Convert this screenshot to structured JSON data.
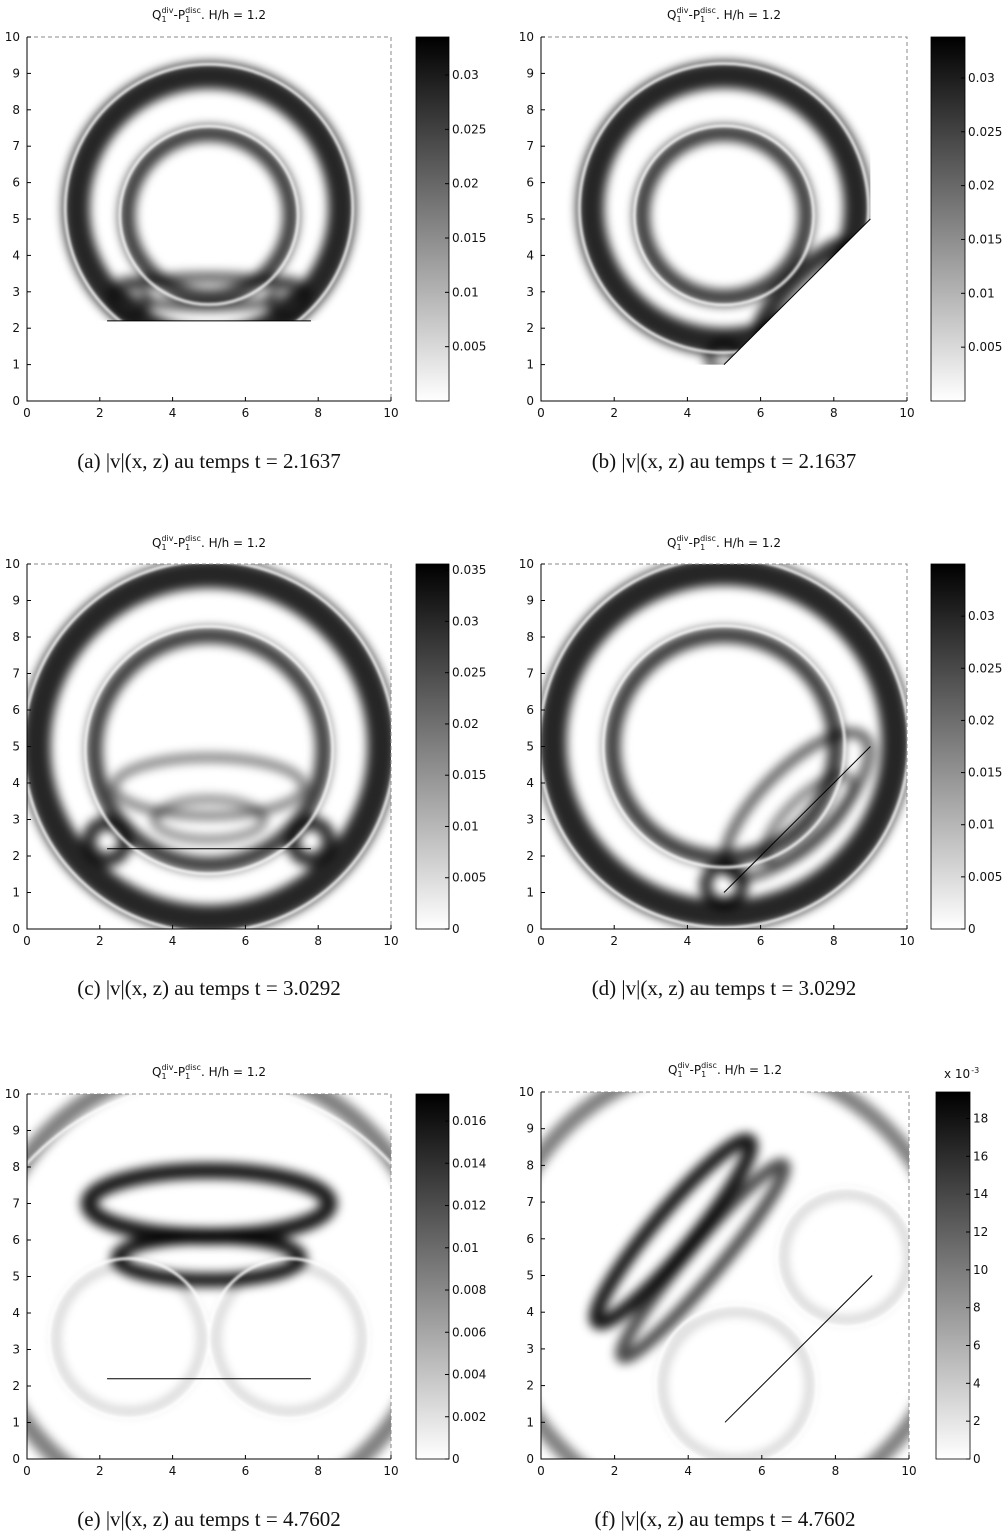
{
  "panels": [
    {
      "title": {
        "q": "Q",
        "q_sub": "1",
        "q_sup": "div",
        "p": "-P",
        "p_sub": "1",
        "p_sup": "disc",
        "rest": ". H/h = 1.2"
      },
      "xlim": [
        0,
        10
      ],
      "ylim": [
        0,
        10
      ],
      "xticks": [
        0,
        2,
        4,
        6,
        8,
        10
      ],
      "yticks": [
        0,
        1,
        2,
        3,
        4,
        5,
        6,
        7,
        8,
        9,
        10
      ],
      "colorbar": {
        "clim": [
          0,
          0.0335
        ],
        "ticks": [
          0.005,
          0.01,
          0.015,
          0.02,
          0.025,
          0.03
        ]
      },
      "caption": "(a) |v|(x, z) au temps t = 2.1637"
    },
    {
      "title": {
        "q": "Q",
        "q_sub": "1",
        "q_sup": "div",
        "p": "-P",
        "p_sub": "1",
        "p_sup": "disc",
        "rest": ". H/h = 1.2"
      },
      "xlim": [
        0,
        10
      ],
      "ylim": [
        0,
        10
      ],
      "xticks": [
        0,
        2,
        4,
        6,
        8,
        10
      ],
      "yticks": [
        0,
        1,
        2,
        3,
        4,
        5,
        6,
        7,
        8,
        9,
        10
      ],
      "colorbar": {
        "clim": [
          0,
          0.0338
        ],
        "ticks": [
          0.005,
          0.01,
          0.015,
          0.02,
          0.025,
          0.03
        ]
      },
      "caption": "(b) |v|(x, z) au temps t = 2.1637"
    },
    {
      "title": {
        "q": "Q",
        "q_sub": "1",
        "q_sup": "div",
        "p": "-P",
        "p_sub": "1",
        "p_sup": "disc",
        "rest": ". H/h = 1.2"
      },
      "xlim": [
        0,
        10
      ],
      "ylim": [
        0,
        10
      ],
      "xticks": [
        0,
        2,
        4,
        6,
        8,
        10
      ],
      "yticks": [
        0,
        1,
        2,
        3,
        4,
        5,
        6,
        7,
        8,
        9,
        10
      ],
      "colorbar": {
        "clim": [
          0,
          0.0356
        ],
        "ticks": [
          0,
          0.005,
          0.01,
          0.015,
          0.02,
          0.025,
          0.03,
          0.035
        ]
      },
      "caption": "(c) |v|(x, z) au temps t = 3.0292"
    },
    {
      "title": {
        "q": "Q",
        "q_sub": "1",
        "q_sup": "div",
        "p": "-P",
        "p_sub": "1",
        "p_sup": "disc",
        "rest": ". H/h = 1.2"
      },
      "xlim": [
        0,
        10
      ],
      "ylim": [
        0,
        10
      ],
      "xticks": [
        0,
        2,
        4,
        6,
        8,
        10
      ],
      "yticks": [
        0,
        1,
        2,
        3,
        4,
        5,
        6,
        7,
        8,
        9,
        10
      ],
      "colorbar": {
        "clim": [
          0,
          0.035
        ],
        "ticks": [
          0,
          0.005,
          0.01,
          0.015,
          0.02,
          0.025,
          0.03
        ]
      },
      "caption": "(d) |v|(x, z) au temps t = 3.0292"
    },
    {
      "title": {
        "q": "Q",
        "q_sub": "1",
        "q_sup": "div",
        "p": "-P",
        "p_sub": "1",
        "p_sup": "disc",
        "rest": ". H/h = 1.2"
      },
      "xlim": [
        0,
        10
      ],
      "ylim": [
        0,
        10
      ],
      "xticks": [
        0,
        2,
        4,
        6,
        8,
        10
      ],
      "yticks": [
        0,
        1,
        2,
        3,
        4,
        5,
        6,
        7,
        8,
        9,
        10
      ],
      "colorbar": {
        "clim": [
          0,
          0.01728
        ],
        "ticks": [
          0,
          0.002,
          0.004,
          0.006,
          0.008,
          0.01,
          0.012,
          0.014,
          0.016
        ]
      },
      "caption": "(e) |v|(x, z) au temps t = 4.7602"
    },
    {
      "title": {
        "q": "Q",
        "q_sub": "1",
        "q_sup": "div",
        "p": "-P",
        "p_sub": "1",
        "p_sup": "disc",
        "rest": ". H/h = 1.2"
      },
      "xlim": [
        0,
        10
      ],
      "ylim": [
        0,
        10
      ],
      "xticks": [
        0,
        2,
        4,
        6,
        8,
        10
      ],
      "yticks": [
        0,
        1,
        2,
        3,
        4,
        5,
        6,
        7,
        8,
        9,
        10
      ],
      "colorbar": {
        "clim": [
          0,
          19.4
        ],
        "ticks": [
          0,
          2,
          4,
          6,
          8,
          10,
          12,
          14,
          16,
          18
        ],
        "multiplier": "x 10",
        "exponent": "-3"
      },
      "caption": "(f) |v|(x, z) au temps t = 4.7602"
    }
  ]
}
